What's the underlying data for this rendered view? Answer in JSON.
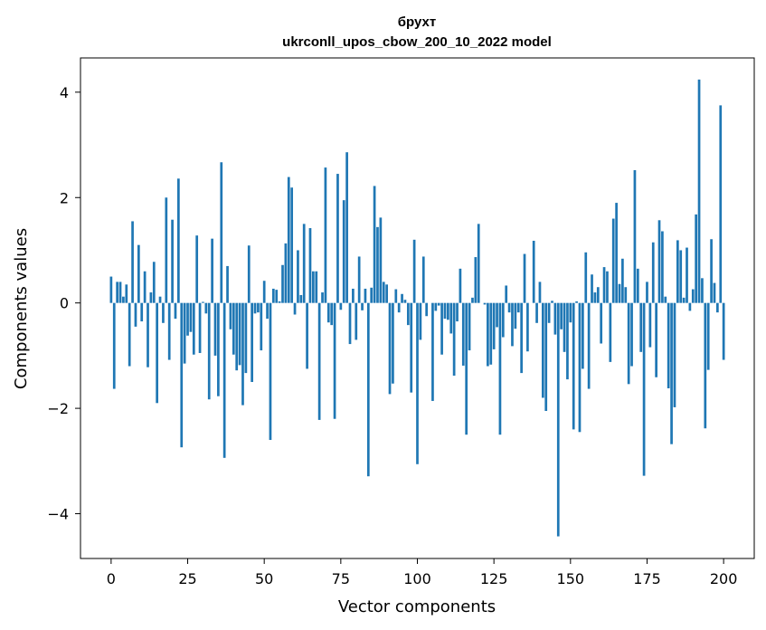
{
  "chart_data": {
    "type": "bar",
    "title": "брухт",
    "subtitle": "ukrconll_upos_cbow_200_10_2022 model",
    "xlabel": "Vector components",
    "ylabel": "Components values",
    "xlim": [
      -10,
      210
    ],
    "ylim": [
      -4.85,
      4.65
    ],
    "x_ticks": [
      0,
      25,
      50,
      75,
      100,
      125,
      150,
      175,
      200
    ],
    "y_ticks": [
      -4,
      -2,
      0,
      2,
      4
    ],
    "y_tick_labels": [
      "−4",
      "−2",
      "0",
      "2",
      "4"
    ],
    "grid": false,
    "bar_color": "#1f77b4",
    "values": [
      0.5,
      -1.63,
      0.4,
      0.4,
      0.12,
      0.35,
      -1.2,
      1.55,
      -0.45,
      1.1,
      -0.35,
      0.6,
      -1.22,
      0.2,
      0.78,
      -1.9,
      0.12,
      -0.38,
      2.0,
      -1.08,
      1.58,
      -0.3,
      2.36,
      -2.74,
      -1.15,
      -0.62,
      -0.55,
      -0.98,
      1.28,
      -0.95,
      0.02,
      -0.2,
      -1.83,
      1.22,
      -1.0,
      -1.77,
      2.67,
      -2.94,
      0.7,
      -0.5,
      -0.98,
      -1.28,
      -1.18,
      -1.94,
      -1.33,
      1.09,
      -1.5,
      -0.2,
      -0.18,
      -0.9,
      0.42,
      -0.3,
      -2.6,
      0.27,
      0.25,
      0.03,
      0.72,
      1.13,
      2.39,
      2.19,
      -0.22,
      1.0,
      0.15,
      1.5,
      -1.25,
      1.42,
      0.6,
      0.6,
      -2.22,
      0.2,
      2.57,
      -0.37,
      -0.42,
      -2.2,
      2.45,
      -0.13,
      1.95,
      2.86,
      -0.78,
      0.27,
      -0.7,
      0.88,
      -0.14,
      0.27,
      -3.29,
      0.29,
      2.22,
      1.44,
      1.62,
      0.4,
      0.35,
      -1.73,
      -1.53,
      0.26,
      -0.18,
      0.17,
      0.06,
      -0.42,
      -1.7,
      1.2,
      -3.06,
      -0.7,
      0.88,
      -0.25,
      0.0,
      -1.86,
      -0.15,
      -0.05,
      -0.98,
      -0.3,
      -0.32,
      -0.58,
      -1.38,
      -0.35,
      0.65,
      -1.19,
      -2.5,
      -0.9,
      0.1,
      0.87,
      1.5,
      0.0,
      -0.03,
      -1.2,
      -1.17,
      -0.88,
      -0.46,
      -2.5,
      -0.65,
      0.33,
      -0.18,
      -0.82,
      -0.49,
      -0.18,
      -1.33,
      0.93,
      -0.92,
      0.0,
      1.18,
      -0.38,
      0.4,
      -1.8,
      -2.05,
      -0.38,
      0.04,
      -0.6,
      -4.43,
      -0.5,
      -0.93,
      -1.45,
      -0.37,
      -2.4,
      0.03,
      -2.45,
      -1.25,
      0.96,
      -1.63,
      0.54,
      0.2,
      0.3,
      -0.77,
      0.68,
      0.6,
      -1.12,
      1.6,
      1.9,
      0.36,
      0.84,
      0.3,
      -1.54,
      -1.2,
      2.52,
      0.65,
      -0.93,
      -3.28,
      0.4,
      -0.84,
      1.15,
      -1.41,
      1.57,
      1.36,
      0.12,
      -1.62,
      -2.68,
      -1.98,
      1.19,
      1.0,
      0.1,
      1.05,
      -0.15,
      0.26,
      1.68,
      4.24,
      0.47,
      -2.38,
      -1.27,
      1.21,
      0.38,
      -0.18,
      3.75,
      -1.08
    ]
  }
}
